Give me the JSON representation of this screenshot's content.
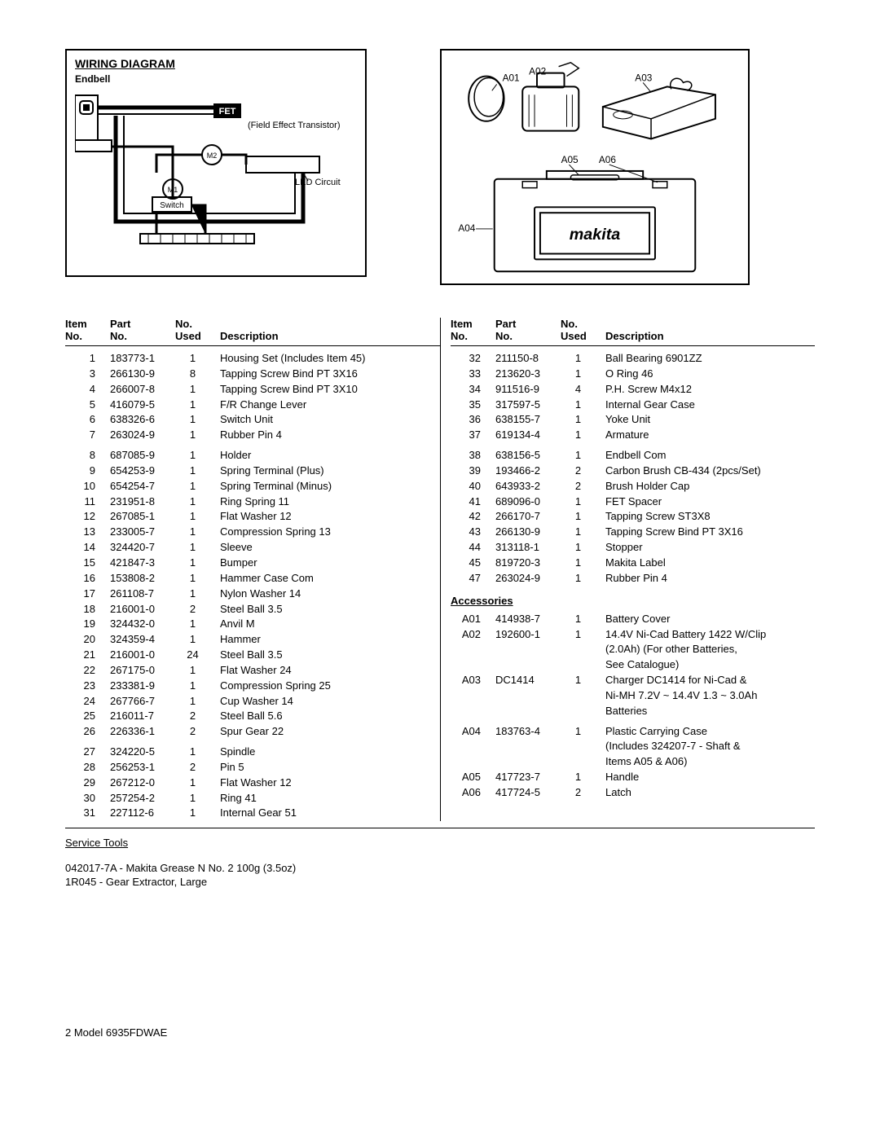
{
  "wiring": {
    "title": "WIRING DIAGRAM",
    "endbell": "Endbell",
    "fet": "FET",
    "fet_sub": "(Field Effect Transistor)",
    "led": "LED Circuit",
    "switch": "Switch",
    "m1": "M1",
    "m2": "M2"
  },
  "accessories_diagram": {
    "a01": "A01",
    "a02": "A02",
    "a03": "A03",
    "a04": "A04",
    "a05": "A05",
    "a06": "A06",
    "brand": "makita"
  },
  "headers": {
    "item": "Item",
    "no": "No.",
    "part": "Part",
    "used": "Used",
    "no_used_line1": "No.",
    "desc": "Description"
  },
  "left_table": [
    [
      "1",
      "183773-1",
      "1",
      "Housing Set (Includes Item 45)"
    ],
    [
      "3",
      "266130-9",
      "8",
      "Tapping Screw Bind PT 3X16"
    ],
    [
      "4",
      "266007-8",
      "1",
      "Tapping Screw Bind PT 3X10"
    ],
    [
      "5",
      "416079-5",
      "1",
      "F/R Change Lever"
    ],
    [
      "6",
      "638326-6",
      "1",
      "Switch Unit"
    ],
    [
      "7",
      "263024-9",
      "1",
      "Rubber Pin 4"
    ]
  ],
  "left_table2": [
    [
      "8",
      "687085-9",
      "1",
      "Holder"
    ],
    [
      "9",
      "654253-9",
      "1",
      "Spring Terminal (Plus)"
    ],
    [
      "10",
      "654254-7",
      "1",
      "Spring Terminal (Minus)"
    ],
    [
      "11",
      "231951-8",
      "1",
      "Ring Spring 11"
    ],
    [
      "12",
      "267085-1",
      "1",
      "Flat Washer 12"
    ],
    [
      "13",
      "233005-7",
      "1",
      "Compression Spring 13"
    ],
    [
      "14",
      "324420-7",
      "1",
      "Sleeve"
    ],
    [
      "15",
      "421847-3",
      "1",
      "Bumper"
    ],
    [
      "16",
      "153808-2",
      "1",
      "Hammer Case Com"
    ],
    [
      "17",
      "261108-7",
      "1",
      "Nylon Washer 14"
    ],
    [
      "18",
      "216001-0",
      "2",
      "Steel Ball 3.5"
    ],
    [
      "19",
      "324432-0",
      "1",
      "Anvil M"
    ],
    [
      "20",
      "324359-4",
      "1",
      "Hammer"
    ],
    [
      "21",
      "216001-0",
      "24",
      "Steel Ball 3.5"
    ],
    [
      "22",
      "267175-0",
      "1",
      "Flat Washer 24"
    ],
    [
      "23",
      "233381-9",
      "1",
      "Compression Spring 25"
    ],
    [
      "24",
      "267766-7",
      "1",
      "Cup Washer 14"
    ],
    [
      "25",
      "216011-7",
      "2",
      "Steel Ball 5.6"
    ],
    [
      "26",
      "226336-1",
      "2",
      "Spur Gear 22"
    ]
  ],
  "left_table3": [
    [
      "27",
      "324220-5",
      "1",
      "Spindle"
    ],
    [
      "28",
      "256253-1",
      "2",
      "Pin 5"
    ],
    [
      "29",
      "267212-0",
      "1",
      "Flat Washer 12"
    ],
    [
      "30",
      "257254-2",
      "1",
      "Ring 41"
    ],
    [
      "31",
      "227112-6",
      "1",
      "Internal Gear 51"
    ]
  ],
  "right_table": [
    [
      "32",
      "211150-8",
      "1",
      "Ball Bearing 6901ZZ"
    ],
    [
      "33",
      "213620-3",
      "1",
      "O Ring 46"
    ],
    [
      "34",
      "911516-9",
      "4",
      "P.H. Screw M4x12"
    ],
    [
      "35",
      "317597-5",
      "1",
      "Internal Gear Case"
    ],
    [
      "36",
      "638155-7",
      "1",
      "Yoke Unit"
    ],
    [
      "37",
      "619134-4",
      "1",
      "Armature"
    ]
  ],
  "right_table2": [
    [
      "38",
      "638156-5",
      "1",
      "Endbell Com"
    ],
    [
      "39",
      "193466-2",
      "2",
      "Carbon Brush CB-434 (2pcs/Set)"
    ],
    [
      "40",
      "643933-2",
      "2",
      "Brush Holder Cap"
    ],
    [
      "41",
      "689096-0",
      "1",
      "FET Spacer"
    ],
    [
      "42",
      "266170-7",
      "1",
      "Tapping Screw ST3X8"
    ],
    [
      "43",
      "266130-9",
      "1",
      "Tapping Screw Bind PT 3X16"
    ],
    [
      "44",
      "313118-1",
      "1",
      "Stopper"
    ],
    [
      "45",
      "819720-3",
      "1",
      "Makita Label"
    ],
    [
      "47",
      "263024-9",
      "1",
      "Rubber Pin 4"
    ]
  ],
  "accessories_header": "Accessories",
  "acc_table": [
    [
      "A01",
      "414938-7",
      "1",
      "Battery Cover"
    ],
    [
      "A02",
      "192600-1",
      "1",
      "14.4V Ni-Cad Battery 1422 W/Clip"
    ],
    [
      "",
      "",
      "",
      "(2.0Ah) (For other Batteries,"
    ],
    [
      "",
      "",
      "",
      "See Catalogue)"
    ],
    [
      "A03",
      "DC1414",
      "1",
      "Charger DC1414 for Ni-Cad &"
    ],
    [
      "",
      "",
      "",
      "Ni-MH  7.2V ~ 14.4V 1.3 ~ 3.0Ah"
    ],
    [
      "",
      "",
      "",
      "Batteries"
    ]
  ],
  "acc_table2": [
    [
      "A04",
      "183763-4",
      "1",
      "Plastic Carrying Case"
    ],
    [
      "",
      "",
      "",
      "(Includes 324207-7 - Shaft &"
    ],
    [
      "",
      "",
      "",
      "Items A05 & A06)"
    ],
    [
      "A05",
      "417723-7",
      "1",
      "Handle"
    ],
    [
      "A06",
      "417724-5",
      "2",
      "Latch"
    ]
  ],
  "service_tools_title": "Service Tools",
  "service_tools": [
    "042017-7A  -  Makita Grease N No. 2 100g (3.5oz)",
    "1R045  -  Gear Extractor, Large"
  ],
  "footer": "2  Model 6935FDWAE",
  "colors": {
    "text": "#000000",
    "bg": "#ffffff",
    "border": "#000000"
  }
}
